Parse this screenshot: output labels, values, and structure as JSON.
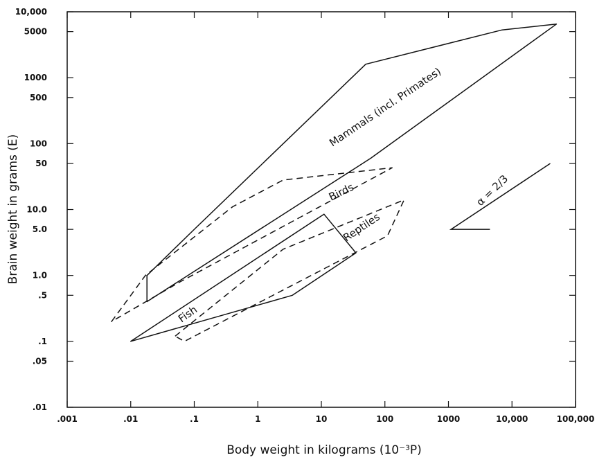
{
  "chart_data": {
    "type": "line",
    "xlabel": "Body weight in kilograms (10⁻³P)",
    "ylabel": "Brain weight in grams (E)",
    "xscale": "log",
    "yscale": "log",
    "xlim": [
      0.001,
      100000
    ],
    "ylim": [
      0.01,
      10000
    ],
    "xticks": [
      {
        "value": 0.001,
        "label": ".001"
      },
      {
        "value": 0.01,
        "label": ".01"
      },
      {
        "value": 0.1,
        "label": ".1"
      },
      {
        "value": 1,
        "label": "1"
      },
      {
        "value": 10,
        "label": "10"
      },
      {
        "value": 100,
        "label": "100"
      },
      {
        "value": 1000,
        "label": "1000"
      },
      {
        "value": 10000,
        "label": "10,000"
      },
      {
        "value": 100000,
        "label": "100,000"
      }
    ],
    "yticks": [
      {
        "value": 10000,
        "label": "10,000"
      },
      {
        "value": 5000,
        "label": "5000"
      },
      {
        "value": 1000,
        "label": "1000"
      },
      {
        "value": 500,
        "label": "500"
      },
      {
        "value": 100,
        "label": "100"
      },
      {
        "value": 50,
        "label": "50"
      },
      {
        "value": 10,
        "label": "10.0"
      },
      {
        "value": 5,
        "label": "5.0"
      },
      {
        "value": 1,
        "label": "1.0"
      },
      {
        "value": 0.5,
        "label": ".5"
      },
      {
        "value": 0.1,
        "label": ".1"
      },
      {
        "value": 0.05,
        "label": ".05"
      },
      {
        "value": 0.01,
        "label": ".01"
      }
    ],
    "regions": [
      {
        "name": "Mammals (incl. Primates)",
        "style": "solid",
        "points": [
          [
            0.018,
            1.0
          ],
          [
            0.1,
            5.0
          ],
          [
            50,
            1600
          ],
          [
            7000,
            5300
          ],
          [
            50000,
            6500
          ],
          [
            60,
            60
          ],
          [
            0.018,
            0.4
          ]
        ]
      },
      {
        "name": "Birds",
        "style": "dashed",
        "points": [
          [
            0.005,
            0.2
          ],
          [
            0.017,
            1.0
          ],
          [
            0.4,
            11
          ],
          [
            2.5,
            28
          ],
          [
            130,
            43
          ],
          [
            0.06,
            0.8
          ]
        ]
      },
      {
        "name": "Fish",
        "style": "solid",
        "points": [
          [
            0.01,
            0.1
          ],
          [
            11,
            8.5
          ],
          [
            35,
            2.2
          ],
          [
            3.5,
            0.5
          ]
        ]
      },
      {
        "name": "Reptiles",
        "style": "dashed",
        "points": [
          [
            0.05,
            0.12
          ],
          [
            2.5,
            2.5
          ],
          [
            200,
            14
          ],
          [
            110,
            4
          ],
          [
            0.07,
            0.1
          ]
        ]
      }
    ],
    "slope_reference": {
      "label": "α = 2/3",
      "points": [
        [
          1100,
          5
        ],
        [
          4500,
          5
        ],
        [
          1100,
          5
        ],
        [
          40000,
          50
        ]
      ]
    }
  }
}
